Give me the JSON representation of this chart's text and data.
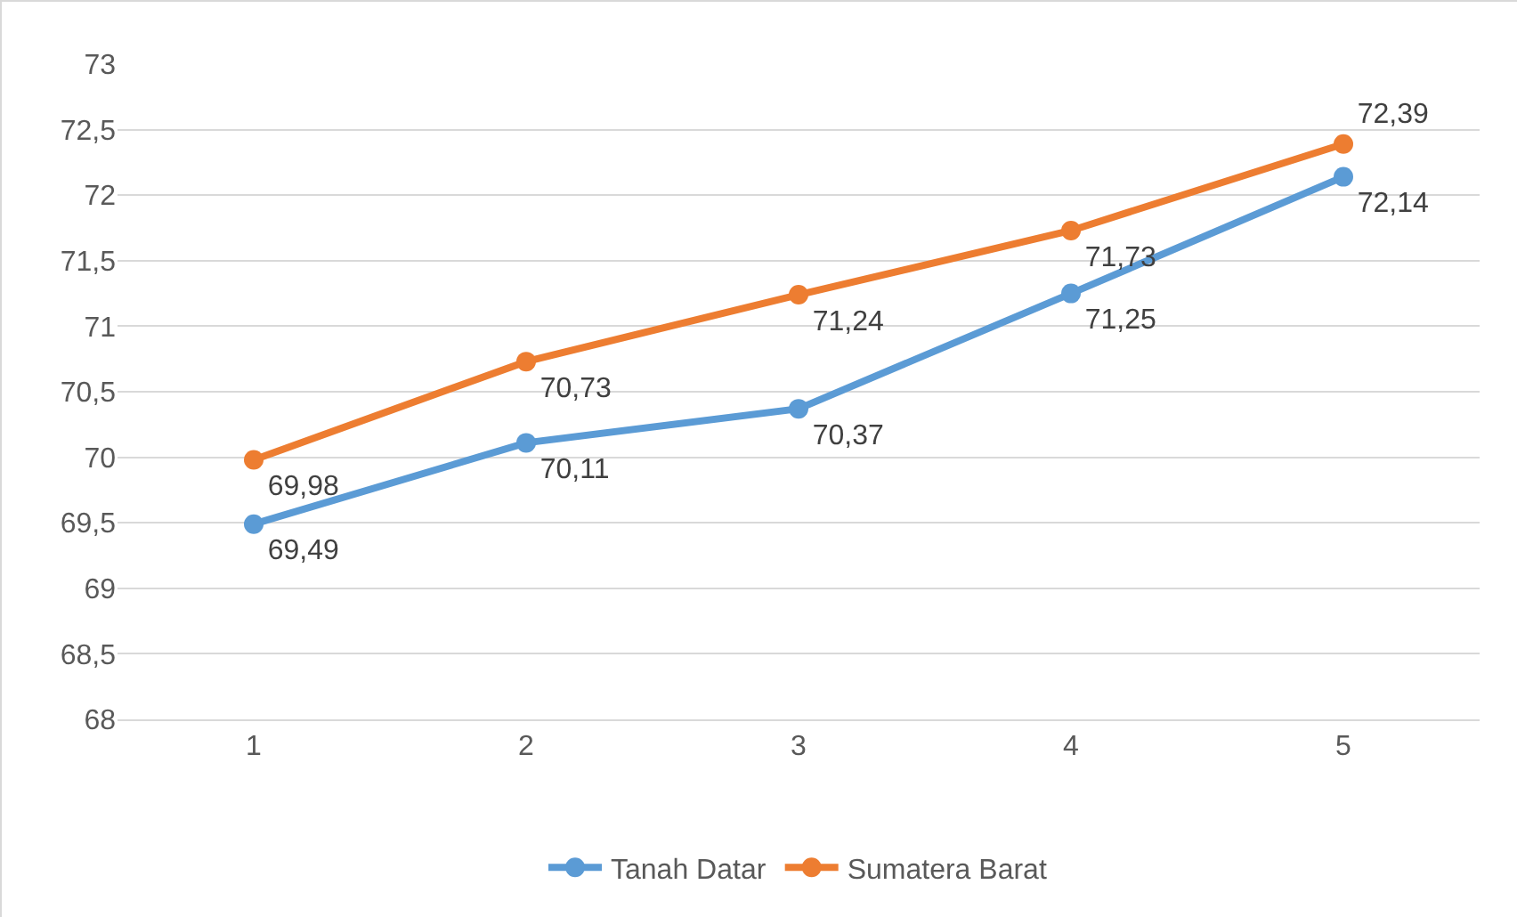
{
  "chart_data": {
    "type": "line",
    "categories": [
      "1",
      "2",
      "3",
      "4",
      "5"
    ],
    "series": [
      {
        "name": "Tanah Datar",
        "color": "#5b9bd5",
        "values": [
          69.49,
          70.11,
          70.37,
          71.25,
          72.14
        ],
        "value_labels": [
          "69,49",
          "70,11",
          "70,37",
          "71,25",
          "72,14"
        ]
      },
      {
        "name": "Sumatera Barat",
        "color": "#ed7d31",
        "values": [
          69.98,
          70.73,
          71.24,
          71.73,
          72.39
        ],
        "value_labels": [
          "69,98",
          "70,73",
          "71,24",
          "71,73",
          "72,39"
        ]
      }
    ],
    "ylim": [
      68,
      73
    ],
    "yticks": [
      68,
      {
        "value": 68.5,
        "label": "68,5"
      },
      69,
      {
        "value": 69.5,
        "label": "69,5"
      },
      70,
      {
        "value": 70.5,
        "label": "70,5"
      },
      71,
      {
        "value": 71.5,
        "label": "71,5"
      },
      72,
      {
        "value": 72.5,
        "label": "72,5"
      },
      73
    ],
    "grid": "y",
    "legend": "bottom",
    "marker": "circle",
    "line_style": "solid"
  }
}
